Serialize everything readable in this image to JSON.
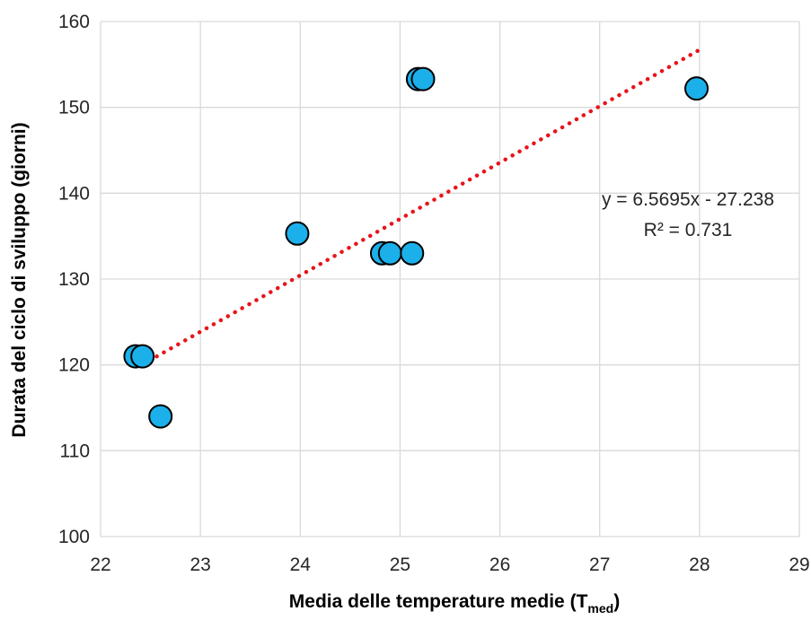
{
  "chart_data": {
    "type": "scatter",
    "title": "",
    "xlabel": "Media delle temperature medie (T",
    "xlabel_sub": "med",
    "xlabel_end": ")",
    "ylabel": "Durata del ciclo di sviluppo (giorni)",
    "xlim": [
      22,
      29
    ],
    "ylim": [
      100,
      160
    ],
    "x_ticks": [
      22,
      23,
      24,
      25,
      26,
      27,
      28,
      29
    ],
    "y_ticks": [
      100,
      110,
      120,
      130,
      140,
      150,
      160
    ],
    "x_tick_labels": [
      "22",
      "23",
      "24",
      "25",
      "26",
      "27",
      "28",
      "29"
    ],
    "y_tick_labels": [
      "100",
      "110",
      "120",
      "130",
      "140",
      "150",
      "160"
    ],
    "grid": true,
    "points": [
      {
        "x": 22.35,
        "y": 121
      },
      {
        "x": 22.42,
        "y": 121
      },
      {
        "x": 22.6,
        "y": 114
      },
      {
        "x": 23.97,
        "y": 135.3
      },
      {
        "x": 24.82,
        "y": 133
      },
      {
        "x": 24.9,
        "y": 133
      },
      {
        "x": 25.12,
        "y": 133
      },
      {
        "x": 25.18,
        "y": 153.3
      },
      {
        "x": 25.23,
        "y": 153.3
      },
      {
        "x": 27.97,
        "y": 152.2
      }
    ],
    "trendline": {
      "type": "linear",
      "slope": 6.5695,
      "intercept": -27.238,
      "x_range": [
        22.42,
        28
      ]
    },
    "equation_label": "y = 6.5695x - 27.238",
    "r2_label": "R² = 0.731",
    "colors": {
      "marker_fill": "#1bb0ea",
      "marker_stroke": "#000000",
      "trendline": "#e8141a",
      "grid": "#d9d9d9"
    }
  }
}
